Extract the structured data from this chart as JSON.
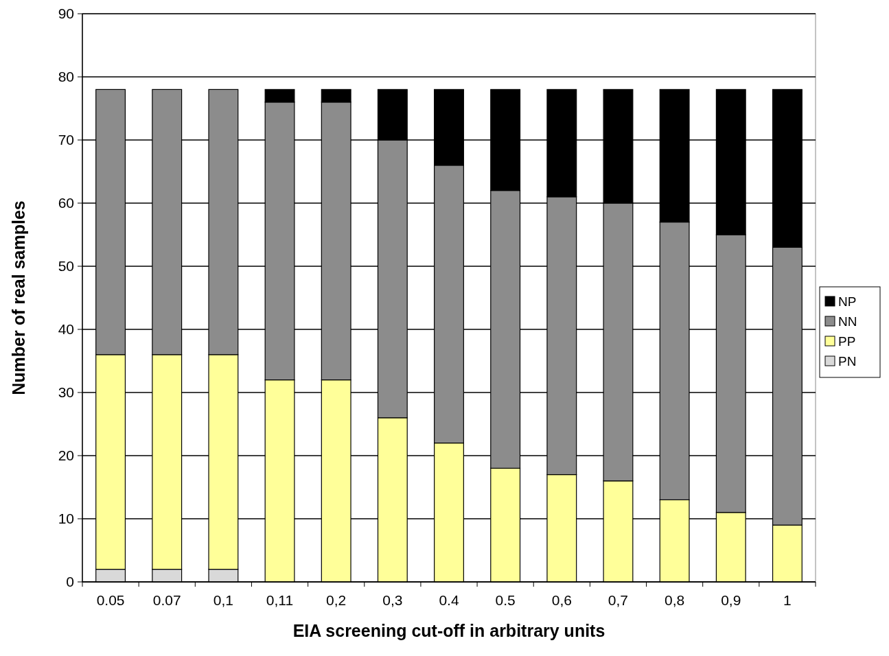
{
  "chart_data": {
    "type": "bar",
    "stacked": true,
    "xlabel": "EIA screening cut-off in arbitrary units",
    "ylabel": "Number of real samples",
    "categories": [
      "0.05",
      "0.07",
      "0,1",
      "0,11",
      "0,2",
      "0,3",
      "0.4",
      "0.5",
      "0,6",
      "0,7",
      "0,8",
      "0,9",
      "1"
    ],
    "series": [
      {
        "name": "PN",
        "color": "#d9d9d9",
        "values": [
          2,
          2,
          2,
          0,
          0,
          0,
          0,
          0,
          0,
          0,
          0,
          0,
          0
        ]
      },
      {
        "name": "PP",
        "color": "#ffff99",
        "values": [
          34,
          34,
          34,
          32,
          32,
          26,
          22,
          18,
          17,
          16,
          13,
          11,
          9
        ]
      },
      {
        "name": "NN",
        "color": "#8c8c8c",
        "values": [
          42,
          42,
          42,
          44,
          44,
          44,
          44,
          44,
          44,
          44,
          44,
          44,
          44
        ]
      },
      {
        "name": "NP",
        "color": "#000000",
        "values": [
          0,
          0,
          0,
          2,
          2,
          8,
          12,
          16,
          17,
          18,
          21,
          23,
          25
        ]
      }
    ],
    "ylim": [
      0,
      90
    ],
    "yticks": [
      0,
      10,
      20,
      30,
      40,
      50,
      60,
      70,
      80,
      90
    ],
    "grid": "y",
    "legend": "right"
  }
}
